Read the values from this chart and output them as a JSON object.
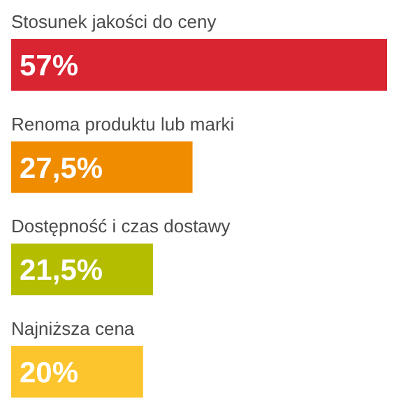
{
  "chart_data": {
    "type": "bar",
    "orientation": "horizontal",
    "categories": [
      "Stosunek jakości do ceny",
      "Renoma produktu lub marki",
      "Dostępność i czas dostawy",
      "Najniższa cena"
    ],
    "values": [
      57,
      27.5,
      21.5,
      20
    ],
    "colors": [
      "#d92432",
      "#f08c00",
      "#b4bd00",
      "#fcc52e"
    ],
    "value_labels": [
      "57%",
      "27,5%",
      "21,5%",
      "20%"
    ]
  }
}
